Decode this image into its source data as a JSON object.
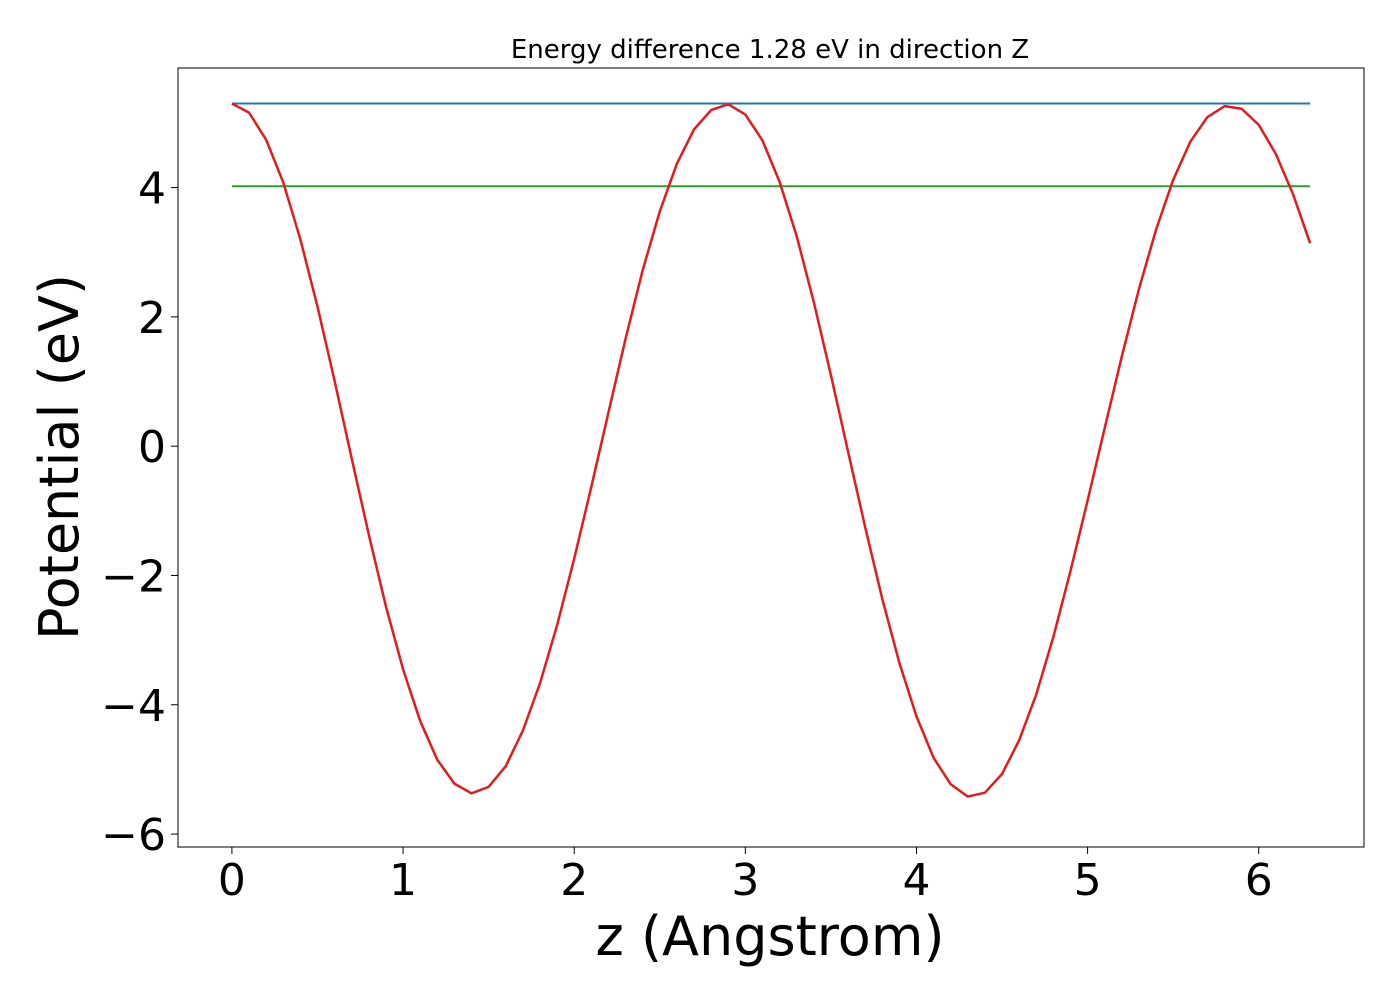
{
  "chart_data": {
    "type": "line",
    "title": "Energy difference 1.28 eV in direction Z",
    "xlabel": "z (Angstrom)",
    "ylabel": "Potential (eV)",
    "xlim": [
      -0.315,
      6.615
    ],
    "ylim": [
      -6.2,
      5.85
    ],
    "x_ticks": [
      0,
      1,
      2,
      3,
      4,
      5,
      6
    ],
    "y_ticks": [
      -6,
      -4,
      -2,
      0,
      2,
      4
    ],
    "grid": false,
    "series": [
      {
        "color": "#1f77b4",
        "x": [
          0,
          6.3
        ],
        "y": [
          5.3,
          5.3
        ]
      },
      {
        "color": "#2ca02c",
        "x": [
          0,
          6.3
        ],
        "y": [
          4.02,
          4.02
        ]
      },
      {
        "color": "#e41a1c",
        "x": [
          0,
          0.1,
          0.2,
          0.3,
          0.4,
          0.5,
          0.6,
          0.7,
          0.8,
          0.9,
          1.0,
          1.1,
          1.2,
          1.3,
          1.4,
          1.5,
          1.6,
          1.7,
          1.8,
          1.9,
          2.0,
          2.1,
          2.2,
          2.3,
          2.4,
          2.5,
          2.6,
          2.7,
          2.8,
          2.9,
          3.0,
          3.1,
          3.2,
          3.3,
          3.4,
          3.5,
          3.6,
          3.7,
          3.8,
          3.9,
          4.0,
          4.1,
          4.2,
          4.3,
          4.4,
          4.5,
          4.6,
          4.7,
          4.8,
          4.9,
          5.0,
          5.1,
          5.2,
          5.3,
          5.4,
          5.5,
          5.6,
          5.7,
          5.8,
          5.9,
          6.0,
          6.1,
          6.2,
          6.3
        ],
        "y": [
          5.3,
          5.16,
          4.74,
          4.08,
          3.2,
          2.16,
          1.01,
          -0.19,
          -1.37,
          -2.48,
          -3.45,
          -4.25,
          -4.85,
          -5.22,
          -5.37,
          -5.27,
          -4.95,
          -4.4,
          -3.67,
          -2.77,
          -1.74,
          -0.63,
          0.52,
          1.66,
          2.72,
          3.63,
          4.37,
          4.9,
          5.2,
          5.29,
          5.13,
          4.73,
          4.09,
          3.25,
          2.23,
          1.1,
          -0.08,
          -1.25,
          -2.36,
          -3.35,
          -4.18,
          -4.82,
          -5.23,
          -5.42,
          -5.36,
          -5.07,
          -4.55,
          -3.84,
          -2.95,
          -1.93,
          -0.84,
          0.28,
          1.39,
          2.43,
          3.35,
          4.12,
          4.71,
          5.09,
          5.26,
          5.22,
          4.97,
          4.52,
          3.9,
          3.14
        ]
      }
    ]
  }
}
